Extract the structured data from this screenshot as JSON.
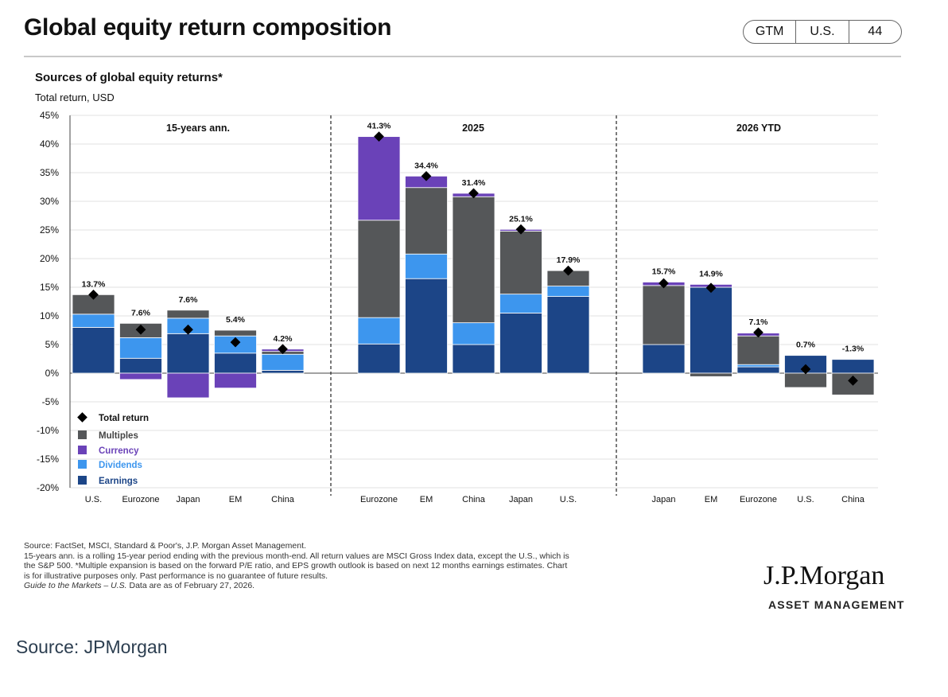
{
  "header": {
    "title": "Global equity return composition",
    "tags": [
      "GTM",
      "U.S.",
      "44"
    ]
  },
  "chart_header": {
    "subtitle": "Sources of global equity returns*",
    "unit": "Total return, USD"
  },
  "footnotes": [
    "Source: FactSet, MSCI, Standard & Poor's, J.P. Morgan Asset Management.",
    "15-years ann. is a rolling 15-year period ending with the previous month-end. All return values are MSCI Gross Index data, except the U.S., which is",
    "the S&P 500. *Multiple expansion is based on the forward P/E ratio, and EPS growth outlook is based on next 12 months earnings estimates. Chart",
    "is for illustrative purposes only. Past performance is no guarantee of future results."
  ],
  "footnote_guide": "Guide to the Markets – U.S.",
  "footnote_date": " Data are as of February 27, 2026.",
  "logo": {
    "name": "J.P.Morgan",
    "sub": "ASSET MANAGEMENT"
  },
  "source": "Source: JPMorgan",
  "colors": {
    "multiples": "#555759",
    "currency": "#6a42b8",
    "dividends": "#3d96ee",
    "earnings": "#1c4587",
    "marker": "#000000"
  },
  "chart_data": {
    "type": "bar",
    "stacked": true,
    "ylim": [
      -20,
      45
    ],
    "yticks": [
      45,
      40,
      35,
      30,
      25,
      20,
      15,
      10,
      5,
      0,
      -5,
      -10,
      -15,
      -20
    ],
    "ytick_labels": [
      "45%",
      "40%",
      "35%",
      "30%",
      "25%",
      "20%",
      "15%",
      "10%",
      "5%",
      "0%",
      "-5%",
      "-10%",
      "-15%",
      "-20%"
    ],
    "grid": true,
    "legend": {
      "placement": "bottom-left",
      "entries": [
        {
          "key": "total",
          "label": "Total return"
        },
        {
          "key": "multiples",
          "label": "Multiples"
        },
        {
          "key": "currency",
          "label": "Currency"
        },
        {
          "key": "dividends",
          "label": "Dividends"
        },
        {
          "key": "earnings",
          "label": "Earnings"
        }
      ]
    },
    "panels": [
      {
        "label": "15-years ann.",
        "categories": [
          "U.S.",
          "Eurozone",
          "Japan",
          "EM",
          "China"
        ],
        "earnings": [
          8.0,
          2.6,
          6.9,
          3.5,
          0.5
        ],
        "dividends": [
          2.3,
          3.6,
          2.7,
          3.0,
          2.8
        ],
        "multiples": [
          3.4,
          2.5,
          1.4,
          1.0,
          0.5
        ],
        "currency": [
          0.0,
          -1.1,
          -4.3,
          -2.6,
          0.4
        ],
        "total": [
          13.7,
          7.6,
          7.6,
          5.4,
          4.2
        ],
        "total_labels": [
          "13.7%",
          "7.6%",
          "7.6%",
          "5.4%",
          "4.2%"
        ]
      },
      {
        "label": "2025",
        "categories": [
          "Eurozone",
          "EM",
          "China",
          "Japan",
          "U.S."
        ],
        "earnings": [
          5.1,
          16.5,
          5.0,
          10.5,
          13.4
        ],
        "dividends": [
          4.6,
          4.3,
          3.8,
          3.3,
          1.8
        ],
        "multiples": [
          17.0,
          11.6,
          22.0,
          11.0,
          2.7
        ],
        "currency": [
          14.6,
          2.0,
          0.6,
          0.3,
          0.0
        ],
        "total": [
          41.3,
          34.4,
          31.4,
          25.1,
          17.9
        ],
        "total_labels": [
          "41.3%",
          "34.4%",
          "31.4%",
          "25.1%",
          "17.9%"
        ]
      },
      {
        "label": "2026 YTD",
        "categories": [
          "Japan",
          "EM",
          "Eurozone",
          "U.S.",
          "China"
        ],
        "earnings": [
          5.0,
          15.0,
          1.1,
          3.1,
          2.4
        ],
        "dividends": [
          0.0,
          0.0,
          0.4,
          0.0,
          0.0
        ],
        "multiples": [
          10.3,
          -0.6,
          5.0,
          -2.5,
          -3.8
        ],
        "currency": [
          0.6,
          0.5,
          0.5,
          0.0,
          0.0
        ],
        "total": [
          15.7,
          14.9,
          7.1,
          0.7,
          -1.3
        ],
        "total_labels": [
          "15.7%",
          "14.9%",
          "7.1%",
          "0.7%",
          "-1.3%"
        ]
      }
    ]
  }
}
